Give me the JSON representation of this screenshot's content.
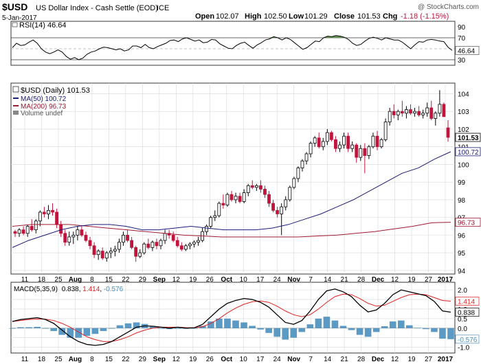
{
  "header": {
    "symbol": "$USD",
    "name": "US Dollar Index - Cash Settle (EOD)",
    "exchange": "ICE",
    "date": "5-Jan-2017",
    "copyright": "@ StockCharts.com",
    "ohlc": {
      "open_label": "Open",
      "open": "102.07",
      "high_label": "High",
      "high": "102.50",
      "low_label": "Low",
      "low": "101.29",
      "close_label": "Close",
      "close": "101.53",
      "chg_label": "Chg",
      "chg": "-1.18 (-1.15%)"
    }
  },
  "colors": {
    "up": "#000000",
    "down": "#c0143c",
    "ma50": "#1a1a7a",
    "ma200": "#a01830",
    "rsi_fill": "#4f8a3c",
    "macd_line": "#000000",
    "signal_line": "#e02020",
    "histogram": "#4a8fc0",
    "grid": "#d8d8d8"
  },
  "chart_data": [
    {
      "type": "line",
      "panel": "rsi",
      "legend": "RSI(14) 46.64",
      "ylim": [
        20,
        100
      ],
      "yticks": [
        30,
        50,
        70,
        90
      ],
      "reference_lines": [
        30,
        70
      ],
      "current_label": "46.64",
      "series": [
        {
          "name": "RSI(14)",
          "values": [
            52,
            60,
            56,
            57,
            62,
            66,
            60,
            50,
            44,
            41,
            44,
            48,
            44,
            36,
            31,
            34,
            30,
            33,
            40,
            44,
            46,
            50,
            53,
            52,
            50,
            48,
            50,
            46,
            48,
            55,
            55,
            52,
            58,
            52,
            50,
            54,
            57,
            60,
            65,
            66,
            63,
            68,
            70,
            67,
            64,
            66,
            61,
            62,
            67,
            66,
            59,
            55,
            51,
            50,
            56,
            60,
            62,
            56,
            51,
            57,
            61,
            66,
            68,
            72,
            70,
            66,
            70,
            67,
            61,
            55,
            49,
            52,
            58,
            64,
            63,
            70,
            73,
            72,
            74,
            73,
            71,
            67,
            60,
            56,
            58,
            64,
            69,
            71,
            69,
            66,
            70,
            68,
            66,
            66,
            62,
            56,
            50,
            57,
            63,
            62,
            66,
            67,
            66,
            64,
            63,
            53,
            47
          ]
        }
      ]
    },
    {
      "type": "candlestick",
      "panel": "price",
      "legend": [
        "$USD (Daily) 101.53",
        "MA(50) 100.72",
        "MA(200) 96.73",
        "Volume undef"
      ],
      "ylim": [
        93.8,
        104.6
      ],
      "yticks": [
        94,
        95,
        96,
        97,
        98,
        99,
        100,
        101,
        102,
        103,
        104
      ],
      "current_labels": [
        "101.53",
        "100.72",
        "96.73"
      ],
      "grid": true,
      "ohlc": [
        [
          96.2,
          96.3,
          95.9,
          96.1
        ],
        [
          96.1,
          96.4,
          95.9,
          96.3
        ],
        [
          96.3,
          96.5,
          96.0,
          96.1
        ],
        [
          96.1,
          96.6,
          95.9,
          96.5
        ],
        [
          96.5,
          96.9,
          96.2,
          96.3
        ],
        [
          96.3,
          96.9,
          96.1,
          96.8
        ],
        [
          96.8,
          97.4,
          96.5,
          97.3
        ],
        [
          97.3,
          97.6,
          97.0,
          97.2
        ],
        [
          97.2,
          97.7,
          96.9,
          97.4
        ],
        [
          97.4,
          97.8,
          97.1,
          97.3
        ],
        [
          97.3,
          97.5,
          96.4,
          96.6
        ],
        [
          96.6,
          96.8,
          95.9,
          96.1
        ],
        [
          96.1,
          96.3,
          95.4,
          95.6
        ],
        [
          95.6,
          96.2,
          95.4,
          95.9
        ],
        [
          95.9,
          96.2,
          95.5,
          96.0
        ],
        [
          96.0,
          96.5,
          95.7,
          96.3
        ],
        [
          96.3,
          96.5,
          95.9,
          96.0
        ],
        [
          96.0,
          96.2,
          95.6,
          95.7
        ],
        [
          95.7,
          95.9,
          95.2,
          95.4
        ],
        [
          95.4,
          95.6,
          94.7,
          94.9
        ],
        [
          94.9,
          95.2,
          94.6,
          95.1
        ],
        [
          95.1,
          95.3,
          94.6,
          94.7
        ],
        [
          94.7,
          95.1,
          94.5,
          95.0
        ],
        [
          95.0,
          95.3,
          94.7,
          95.1
        ],
        [
          95.1,
          95.4,
          94.8,
          95.2
        ],
        [
          95.2,
          95.8,
          95.0,
          95.6
        ],
        [
          95.6,
          96.2,
          95.4,
          96.0
        ],
        [
          96.0,
          96.3,
          95.6,
          95.7
        ],
        [
          95.7,
          95.9,
          95.2,
          95.3
        ],
        [
          95.3,
          95.4,
          94.5,
          94.8
        ],
        [
          94.8,
          95.2,
          94.7,
          95.0
        ],
        [
          95.0,
          95.6,
          94.9,
          95.5
        ],
        [
          95.5,
          95.8,
          95.2,
          95.3
        ],
        [
          95.3,
          95.7,
          95.1,
          95.6
        ],
        [
          95.6,
          95.8,
          95.2,
          95.4
        ],
        [
          95.4,
          95.8,
          95.2,
          95.7
        ],
        [
          95.7,
          96.3,
          95.5,
          96.1
        ],
        [
          96.1,
          96.3,
          95.8,
          96.0
        ],
        [
          96.0,
          96.2,
          95.6,
          95.7
        ],
        [
          95.7,
          95.9,
          95.3,
          95.4
        ],
        [
          95.4,
          95.6,
          95.1,
          95.2
        ],
        [
          95.2,
          95.5,
          95.1,
          95.4
        ],
        [
          95.4,
          95.6,
          95.2,
          95.5
        ],
        [
          95.5,
          95.7,
          95.3,
          95.6
        ],
        [
          95.6,
          95.9,
          95.4,
          95.7
        ],
        [
          95.7,
          96.4,
          95.6,
          96.2
        ],
        [
          96.2,
          96.6,
          96.0,
          96.5
        ],
        [
          96.5,
          97.1,
          96.4,
          97.0
        ],
        [
          97.0,
          97.4,
          96.8,
          97.1
        ],
        [
          97.1,
          97.9,
          97.0,
          97.8
        ],
        [
          97.8,
          98.3,
          97.5,
          97.7
        ],
        [
          97.7,
          98.4,
          97.6,
          98.3
        ],
        [
          98.3,
          98.5,
          97.9,
          98.0
        ],
        [
          98.0,
          98.4,
          97.8,
          98.2
        ],
        [
          98.2,
          98.4,
          97.8,
          97.9
        ],
        [
          97.9,
          98.6,
          97.8,
          98.4
        ],
        [
          98.4,
          98.9,
          98.2,
          98.8
        ],
        [
          98.8,
          99.1,
          98.6,
          98.7
        ],
        [
          98.7,
          98.9,
          98.5,
          98.8
        ],
        [
          98.8,
          99.1,
          98.4,
          98.6
        ],
        [
          98.6,
          98.8,
          98.1,
          98.3
        ],
        [
          98.3,
          98.5,
          97.6,
          97.8
        ],
        [
          97.8,
          98.0,
          97.3,
          97.4
        ],
        [
          97.4,
          97.6,
          97.0,
          97.2
        ],
        [
          97.2,
          97.8,
          96.0,
          97.6
        ],
        [
          97.6,
          98.2,
          97.4,
          98.0
        ],
        [
          98.0,
          98.8,
          97.9,
          98.7
        ],
        [
          98.7,
          99.3,
          98.6,
          99.2
        ],
        [
          99.2,
          99.9,
          99.0,
          99.8
        ],
        [
          99.8,
          100.3,
          99.6,
          100.2
        ],
        [
          100.2,
          100.7,
          100.0,
          100.6
        ],
        [
          100.6,
          101.3,
          100.4,
          101.2
        ],
        [
          101.2,
          101.6,
          101.0,
          101.5
        ],
        [
          101.5,
          101.8,
          100.9,
          101.0
        ],
        [
          101.0,
          101.5,
          100.8,
          101.3
        ],
        [
          101.3,
          102.0,
          101.1,
          101.8
        ],
        [
          101.8,
          101.9,
          101.3,
          101.4
        ],
        [
          101.4,
          101.6,
          100.7,
          100.9
        ],
        [
          100.9,
          101.3,
          100.7,
          101.1
        ],
        [
          101.1,
          101.8,
          100.9,
          101.6
        ],
        [
          101.6,
          101.8,
          100.7,
          100.9
        ],
        [
          100.9,
          101.3,
          100.7,
          101.1
        ],
        [
          101.1,
          101.2,
          100.1,
          100.4
        ],
        [
          100.4,
          101.1,
          100.2,
          100.9
        ],
        [
          100.9,
          101.2,
          99.5,
          100.5
        ],
        [
          100.5,
          101.1,
          100.3,
          101.0
        ],
        [
          101.0,
          101.8,
          100.9,
          101.6
        ],
        [
          101.6,
          101.9,
          100.8,
          101.0
        ],
        [
          101.0,
          101.5,
          100.9,
          101.4
        ],
        [
          101.4,
          102.6,
          101.3,
          102.4
        ],
        [
          102.4,
          103.2,
          102.2,
          103.0
        ],
        [
          103.0,
          103.4,
          102.6,
          102.8
        ],
        [
          102.8,
          103.1,
          102.5,
          103.0
        ],
        [
          103.0,
          103.6,
          102.7,
          102.9
        ],
        [
          102.9,
          103.3,
          102.6,
          103.1
        ],
        [
          103.1,
          103.4,
          102.8,
          102.9
        ],
        [
          102.9,
          103.2,
          102.7,
          103.0
        ],
        [
          103.0,
          103.3,
          102.7,
          102.8
        ],
        [
          102.8,
          103.1,
          102.6,
          102.9
        ],
        [
          102.9,
          103.5,
          102.7,
          103.2
        ],
        [
          103.2,
          103.6,
          102.5,
          102.6
        ],
        [
          102.6,
          103.0,
          102.2,
          102.9
        ],
        [
          102.9,
          104.2,
          102.7,
          103.4
        ],
        [
          103.4,
          103.5,
          102.7,
          102.7
        ],
        [
          102.07,
          102.5,
          101.29,
          101.53
        ]
      ],
      "series": [
        {
          "name": "MA(50)",
          "values": [
            95.3,
            95.7,
            96.0,
            96.3,
            96.5,
            96.6,
            96.6,
            96.5,
            96.3,
            96.3,
            96.4,
            96.5,
            96.4,
            96.3,
            96.3,
            96.3,
            96.4,
            96.6,
            96.9,
            97.2,
            97.6,
            98.0,
            98.5,
            99.0,
            99.5,
            99.8,
            100.3,
            100.72
          ]
        },
        {
          "name": "MA(200)",
          "values": [
            96.5,
            96.6,
            96.6,
            96.6,
            96.5,
            96.4,
            96.3,
            96.2,
            96.1,
            96.0,
            95.95,
            95.9,
            95.9,
            95.9,
            95.9,
            95.9,
            95.95,
            96.0,
            96.1,
            96.2,
            96.35,
            96.5,
            96.7,
            96.73
          ]
        }
      ]
    },
    {
      "type": "line",
      "panel": "macd",
      "legend": {
        "label": "MACD(5,35,9)",
        "macd": "0.838",
        "signal": "1.414",
        "hist": "-0.576"
      },
      "ylim": [
        -1.3,
        2.4
      ],
      "yticks": [
        "-1.0",
        "-0.5",
        "0.0",
        "0.5",
        "1.0",
        "1.5",
        "2.0"
      ],
      "current_labels": [
        "1.414",
        "0.838",
        "-0.576"
      ],
      "series": [
        {
          "name": "MACD",
          "values": [
            0.35,
            0.45,
            0.5,
            0.55,
            0.45,
            0.25,
            -0.1,
            -0.45,
            -0.7,
            -0.85,
            -0.9,
            -0.85,
            -0.7,
            -0.45,
            -0.2,
            0.05,
            0.12,
            0.1,
            0.05,
            0.0,
            0.05,
            0.0,
            0.02,
            0.2,
            0.6,
            1.0,
            1.3,
            1.45,
            1.55,
            1.5,
            1.35,
            1.1,
            0.7,
            0.3,
            0.2,
            0.4,
            0.9,
            1.5,
            1.95,
            2.05,
            1.9,
            1.65,
            1.2,
            0.85,
            0.95,
            1.3,
            1.75,
            2.0,
            1.9,
            1.8,
            1.7,
            1.4,
            0.9,
            0.838
          ]
        },
        {
          "name": "Signal",
          "values": [
            0.35,
            0.4,
            0.45,
            0.48,
            0.47,
            0.4,
            0.25,
            0.05,
            -0.2,
            -0.45,
            -0.6,
            -0.7,
            -0.7,
            -0.6,
            -0.45,
            -0.25,
            -0.1,
            0.0,
            0.05,
            0.05,
            0.05,
            0.03,
            0.02,
            0.08,
            0.25,
            0.5,
            0.8,
            1.05,
            1.25,
            1.38,
            1.42,
            1.35,
            1.15,
            0.9,
            0.7,
            0.6,
            0.7,
            1.0,
            1.35,
            1.65,
            1.78,
            1.75,
            1.55,
            1.3,
            1.15,
            1.2,
            1.4,
            1.6,
            1.75,
            1.78,
            1.75,
            1.6,
            1.45,
            1.414
          ]
        }
      ]
    }
  ],
  "x_axis": {
    "labels": [
      {
        "text": "11"
      },
      {
        "text": "18"
      },
      {
        "text": "25"
      },
      {
        "text": "Aug",
        "bold": true
      },
      {
        "text": "8"
      },
      {
        "text": "15"
      },
      {
        "text": "22"
      },
      {
        "text": "29"
      },
      {
        "text": "Sep",
        "bold": true
      },
      {
        "text": "12"
      },
      {
        "text": "19"
      },
      {
        "text": "26"
      },
      {
        "text": "Oct",
        "bold": true
      },
      {
        "text": "10"
      },
      {
        "text": "17"
      },
      {
        "text": "24"
      },
      {
        "text": "Nov",
        "bold": true
      },
      {
        "text": "7"
      },
      {
        "text": "14"
      },
      {
        "text": "21"
      },
      {
        "text": "28"
      },
      {
        "text": "Dec",
        "bold": true
      },
      {
        "text": "12"
      },
      {
        "text": "19"
      },
      {
        "text": "27"
      },
      {
        "text": "2017",
        "bold": true
      }
    ]
  }
}
